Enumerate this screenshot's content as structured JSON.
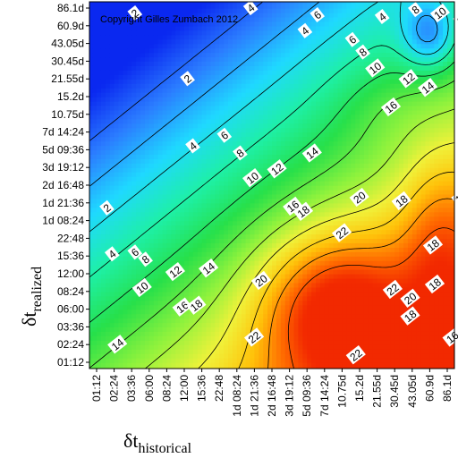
{
  "chart_data": {
    "type": "heatmap",
    "title": "",
    "annotation": "Copyright Gilles Zumbach 2012",
    "xlabel": {
      "symbol": "δt",
      "subscript": "historical"
    },
    "ylabel": {
      "symbol": "δt",
      "subscript": "realized"
    },
    "x_ticks": [
      "01:12",
      "02:24",
      "03:36",
      "06:00",
      "08:24",
      "12:00",
      "15:36",
      "22:48",
      "1d 08:24",
      "1d 21:36",
      "2d 16:48",
      "3d 19:12",
      "5d 09:36",
      "7d 14:24",
      "10.75d",
      "15.2d",
      "21.55d",
      "30.45d",
      "43.05d",
      "60.9d",
      "86.1d"
    ],
    "y_ticks": [
      "86.1d",
      "60.9d",
      "43.05d",
      "30.45d",
      "21.55d",
      "15.2d",
      "10.75d",
      "7d 14:24",
      "5d 09:36",
      "3d 19:12",
      "2d 16:48",
      "1d 21:36",
      "1d 08:24",
      "22:48",
      "15:36",
      "12:00",
      "08:24",
      "06:00",
      "03:36",
      "02:24",
      "01:12"
    ],
    "contour_levels": [
      2,
      4,
      6,
      8,
      10,
      12,
      14,
      16,
      18,
      20,
      22
    ],
    "value_range": [
      0,
      24
    ],
    "colorscale": [
      "#0a28f0",
      "#2b7cff",
      "#1fd9ff",
      "#1ef0a6",
      "#27e04a",
      "#8ef23d",
      "#f0f23a",
      "#ffc20a",
      "#ff6a00",
      "#f01d00"
    ],
    "contour_labels": [
      {
        "text": "2",
        "x": 2.2,
        "y": 19.7
      },
      {
        "text": "4",
        "x": 8.8,
        "y": 20.0
      },
      {
        "text": "6",
        "x": 12.6,
        "y": 19.6
      },
      {
        "text": "8",
        "x": 18.2,
        "y": 19.9
      },
      {
        "text": "10",
        "x": 19.6,
        "y": 19.7
      },
      {
        "text": "12",
        "x": 20.9,
        "y": 19.4
      },
      {
        "text": "4",
        "x": 16.3,
        "y": 19.5
      },
      {
        "text": "4",
        "x": 11.9,
        "y": 18.7
      },
      {
        "text": "6",
        "x": 14.6,
        "y": 18.2
      },
      {
        "text": "8",
        "x": 15.2,
        "y": 17.5
      },
      {
        "text": "10",
        "x": 15.9,
        "y": 16.6
      },
      {
        "text": "12",
        "x": 17.8,
        "y": 16.0
      },
      {
        "text": "14",
        "x": 18.9,
        "y": 15.5
      },
      {
        "text": "16",
        "x": 16.8,
        "y": 14.4
      },
      {
        "text": "2",
        "x": 5.2,
        "y": 16.0
      },
      {
        "text": "4",
        "x": 5.5,
        "y": 12.2
      },
      {
        "text": "6",
        "x": 7.3,
        "y": 12.8
      },
      {
        "text": "8",
        "x": 8.2,
        "y": 11.8
      },
      {
        "text": "10",
        "x": 8.9,
        "y": 10.4
      },
      {
        "text": "12",
        "x": 10.3,
        "y": 10.9
      },
      {
        "text": "14",
        "x": 12.3,
        "y": 11.8
      },
      {
        "text": "16",
        "x": 11.2,
        "y": 8.8
      },
      {
        "text": "18",
        "x": 11.8,
        "y": 8.5
      },
      {
        "text": "20",
        "x": 15.0,
        "y": 9.3
      },
      {
        "text": "18",
        "x": 17.4,
        "y": 9.1
      },
      {
        "text": "16",
        "x": 20.8,
        "y": 9.3
      },
      {
        "text": "2",
        "x": 0.6,
        "y": 8.7
      },
      {
        "text": "4",
        "x": 0.9,
        "y": 6.1
      },
      {
        "text": "6",
        "x": 2.2,
        "y": 6.2
      },
      {
        "text": "8",
        "x": 2.8,
        "y": 5.8
      },
      {
        "text": "10",
        "x": 2.6,
        "y": 4.2
      },
      {
        "text": "12",
        "x": 4.5,
        "y": 5.1
      },
      {
        "text": "14",
        "x": 6.4,
        "y": 5.3
      },
      {
        "text": "16",
        "x": 4.9,
        "y": 3.1
      },
      {
        "text": "18",
        "x": 5.7,
        "y": 3.2
      },
      {
        "text": "20",
        "x": 9.4,
        "y": 4.6
      },
      {
        "text": "22",
        "x": 14.0,
        "y": 7.3
      },
      {
        "text": "22",
        "x": 16.9,
        "y": 4.1
      },
      {
        "text": "20",
        "x": 17.9,
        "y": 3.6
      },
      {
        "text": "18",
        "x": 19.2,
        "y": 6.6
      },
      {
        "text": "18",
        "x": 19.3,
        "y": 4.4
      },
      {
        "text": "18",
        "x": 17.9,
        "y": 2.6
      },
      {
        "text": "16",
        "x": 20.3,
        "y": 1.4
      },
      {
        "text": "22",
        "x": 9.0,
        "y": 1.4
      },
      {
        "text": "22",
        "x": 14.8,
        "y": 0.4
      },
      {
        "text": "14",
        "x": 1.2,
        "y": 1.0
      }
    ]
  }
}
